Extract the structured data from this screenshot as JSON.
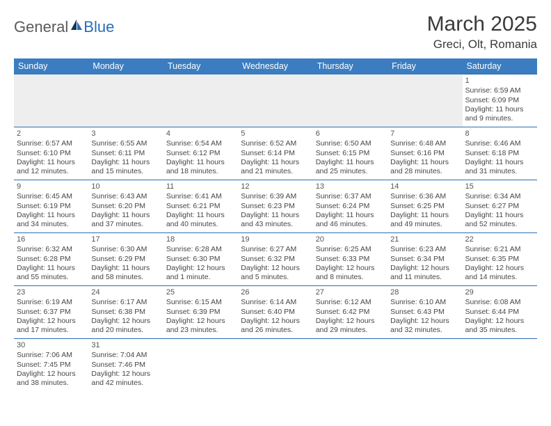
{
  "brand": {
    "part1": "General",
    "part2": "Blue"
  },
  "title": "March 2025",
  "location": "Greci, Olt, Romania",
  "colors": {
    "header_bg": "#3b7dc0",
    "header_text": "#ffffff",
    "cell_border": "#2a6db5",
    "empty_bg": "#eeeeee",
    "text": "#464646"
  },
  "weekdays": [
    "Sunday",
    "Monday",
    "Tuesday",
    "Wednesday",
    "Thursday",
    "Friday",
    "Saturday"
  ],
  "weeks": [
    [
      null,
      null,
      null,
      null,
      null,
      null,
      {
        "d": "1",
        "sr": "Sunrise: 6:59 AM",
        "ss": "Sunset: 6:09 PM",
        "dl1": "Daylight: 11 hours",
        "dl2": "and 9 minutes."
      }
    ],
    [
      {
        "d": "2",
        "sr": "Sunrise: 6:57 AM",
        "ss": "Sunset: 6:10 PM",
        "dl1": "Daylight: 11 hours",
        "dl2": "and 12 minutes."
      },
      {
        "d": "3",
        "sr": "Sunrise: 6:55 AM",
        "ss": "Sunset: 6:11 PM",
        "dl1": "Daylight: 11 hours",
        "dl2": "and 15 minutes."
      },
      {
        "d": "4",
        "sr": "Sunrise: 6:54 AM",
        "ss": "Sunset: 6:12 PM",
        "dl1": "Daylight: 11 hours",
        "dl2": "and 18 minutes."
      },
      {
        "d": "5",
        "sr": "Sunrise: 6:52 AM",
        "ss": "Sunset: 6:14 PM",
        "dl1": "Daylight: 11 hours",
        "dl2": "and 21 minutes."
      },
      {
        "d": "6",
        "sr": "Sunrise: 6:50 AM",
        "ss": "Sunset: 6:15 PM",
        "dl1": "Daylight: 11 hours",
        "dl2": "and 25 minutes."
      },
      {
        "d": "7",
        "sr": "Sunrise: 6:48 AM",
        "ss": "Sunset: 6:16 PM",
        "dl1": "Daylight: 11 hours",
        "dl2": "and 28 minutes."
      },
      {
        "d": "8",
        "sr": "Sunrise: 6:46 AM",
        "ss": "Sunset: 6:18 PM",
        "dl1": "Daylight: 11 hours",
        "dl2": "and 31 minutes."
      }
    ],
    [
      {
        "d": "9",
        "sr": "Sunrise: 6:45 AM",
        "ss": "Sunset: 6:19 PM",
        "dl1": "Daylight: 11 hours",
        "dl2": "and 34 minutes."
      },
      {
        "d": "10",
        "sr": "Sunrise: 6:43 AM",
        "ss": "Sunset: 6:20 PM",
        "dl1": "Daylight: 11 hours",
        "dl2": "and 37 minutes."
      },
      {
        "d": "11",
        "sr": "Sunrise: 6:41 AM",
        "ss": "Sunset: 6:21 PM",
        "dl1": "Daylight: 11 hours",
        "dl2": "and 40 minutes."
      },
      {
        "d": "12",
        "sr": "Sunrise: 6:39 AM",
        "ss": "Sunset: 6:23 PM",
        "dl1": "Daylight: 11 hours",
        "dl2": "and 43 minutes."
      },
      {
        "d": "13",
        "sr": "Sunrise: 6:37 AM",
        "ss": "Sunset: 6:24 PM",
        "dl1": "Daylight: 11 hours",
        "dl2": "and 46 minutes."
      },
      {
        "d": "14",
        "sr": "Sunrise: 6:36 AM",
        "ss": "Sunset: 6:25 PM",
        "dl1": "Daylight: 11 hours",
        "dl2": "and 49 minutes."
      },
      {
        "d": "15",
        "sr": "Sunrise: 6:34 AM",
        "ss": "Sunset: 6:27 PM",
        "dl1": "Daylight: 11 hours",
        "dl2": "and 52 minutes."
      }
    ],
    [
      {
        "d": "16",
        "sr": "Sunrise: 6:32 AM",
        "ss": "Sunset: 6:28 PM",
        "dl1": "Daylight: 11 hours",
        "dl2": "and 55 minutes."
      },
      {
        "d": "17",
        "sr": "Sunrise: 6:30 AM",
        "ss": "Sunset: 6:29 PM",
        "dl1": "Daylight: 11 hours",
        "dl2": "and 58 minutes."
      },
      {
        "d": "18",
        "sr": "Sunrise: 6:28 AM",
        "ss": "Sunset: 6:30 PM",
        "dl1": "Daylight: 12 hours",
        "dl2": "and 1 minute."
      },
      {
        "d": "19",
        "sr": "Sunrise: 6:27 AM",
        "ss": "Sunset: 6:32 PM",
        "dl1": "Daylight: 12 hours",
        "dl2": "and 5 minutes."
      },
      {
        "d": "20",
        "sr": "Sunrise: 6:25 AM",
        "ss": "Sunset: 6:33 PM",
        "dl1": "Daylight: 12 hours",
        "dl2": "and 8 minutes."
      },
      {
        "d": "21",
        "sr": "Sunrise: 6:23 AM",
        "ss": "Sunset: 6:34 PM",
        "dl1": "Daylight: 12 hours",
        "dl2": "and 11 minutes."
      },
      {
        "d": "22",
        "sr": "Sunrise: 6:21 AM",
        "ss": "Sunset: 6:35 PM",
        "dl1": "Daylight: 12 hours",
        "dl2": "and 14 minutes."
      }
    ],
    [
      {
        "d": "23",
        "sr": "Sunrise: 6:19 AM",
        "ss": "Sunset: 6:37 PM",
        "dl1": "Daylight: 12 hours",
        "dl2": "and 17 minutes."
      },
      {
        "d": "24",
        "sr": "Sunrise: 6:17 AM",
        "ss": "Sunset: 6:38 PM",
        "dl1": "Daylight: 12 hours",
        "dl2": "and 20 minutes."
      },
      {
        "d": "25",
        "sr": "Sunrise: 6:15 AM",
        "ss": "Sunset: 6:39 PM",
        "dl1": "Daylight: 12 hours",
        "dl2": "and 23 minutes."
      },
      {
        "d": "26",
        "sr": "Sunrise: 6:14 AM",
        "ss": "Sunset: 6:40 PM",
        "dl1": "Daylight: 12 hours",
        "dl2": "and 26 minutes."
      },
      {
        "d": "27",
        "sr": "Sunrise: 6:12 AM",
        "ss": "Sunset: 6:42 PM",
        "dl1": "Daylight: 12 hours",
        "dl2": "and 29 minutes."
      },
      {
        "d": "28",
        "sr": "Sunrise: 6:10 AM",
        "ss": "Sunset: 6:43 PM",
        "dl1": "Daylight: 12 hours",
        "dl2": "and 32 minutes."
      },
      {
        "d": "29",
        "sr": "Sunrise: 6:08 AM",
        "ss": "Sunset: 6:44 PM",
        "dl1": "Daylight: 12 hours",
        "dl2": "and 35 minutes."
      }
    ],
    [
      {
        "d": "30",
        "sr": "Sunrise: 7:06 AM",
        "ss": "Sunset: 7:45 PM",
        "dl1": "Daylight: 12 hours",
        "dl2": "and 38 minutes."
      },
      {
        "d": "31",
        "sr": "Sunrise: 7:04 AM",
        "ss": "Sunset: 7:46 PM",
        "dl1": "Daylight: 12 hours",
        "dl2": "and 42 minutes."
      },
      null,
      null,
      null,
      null,
      null
    ]
  ]
}
